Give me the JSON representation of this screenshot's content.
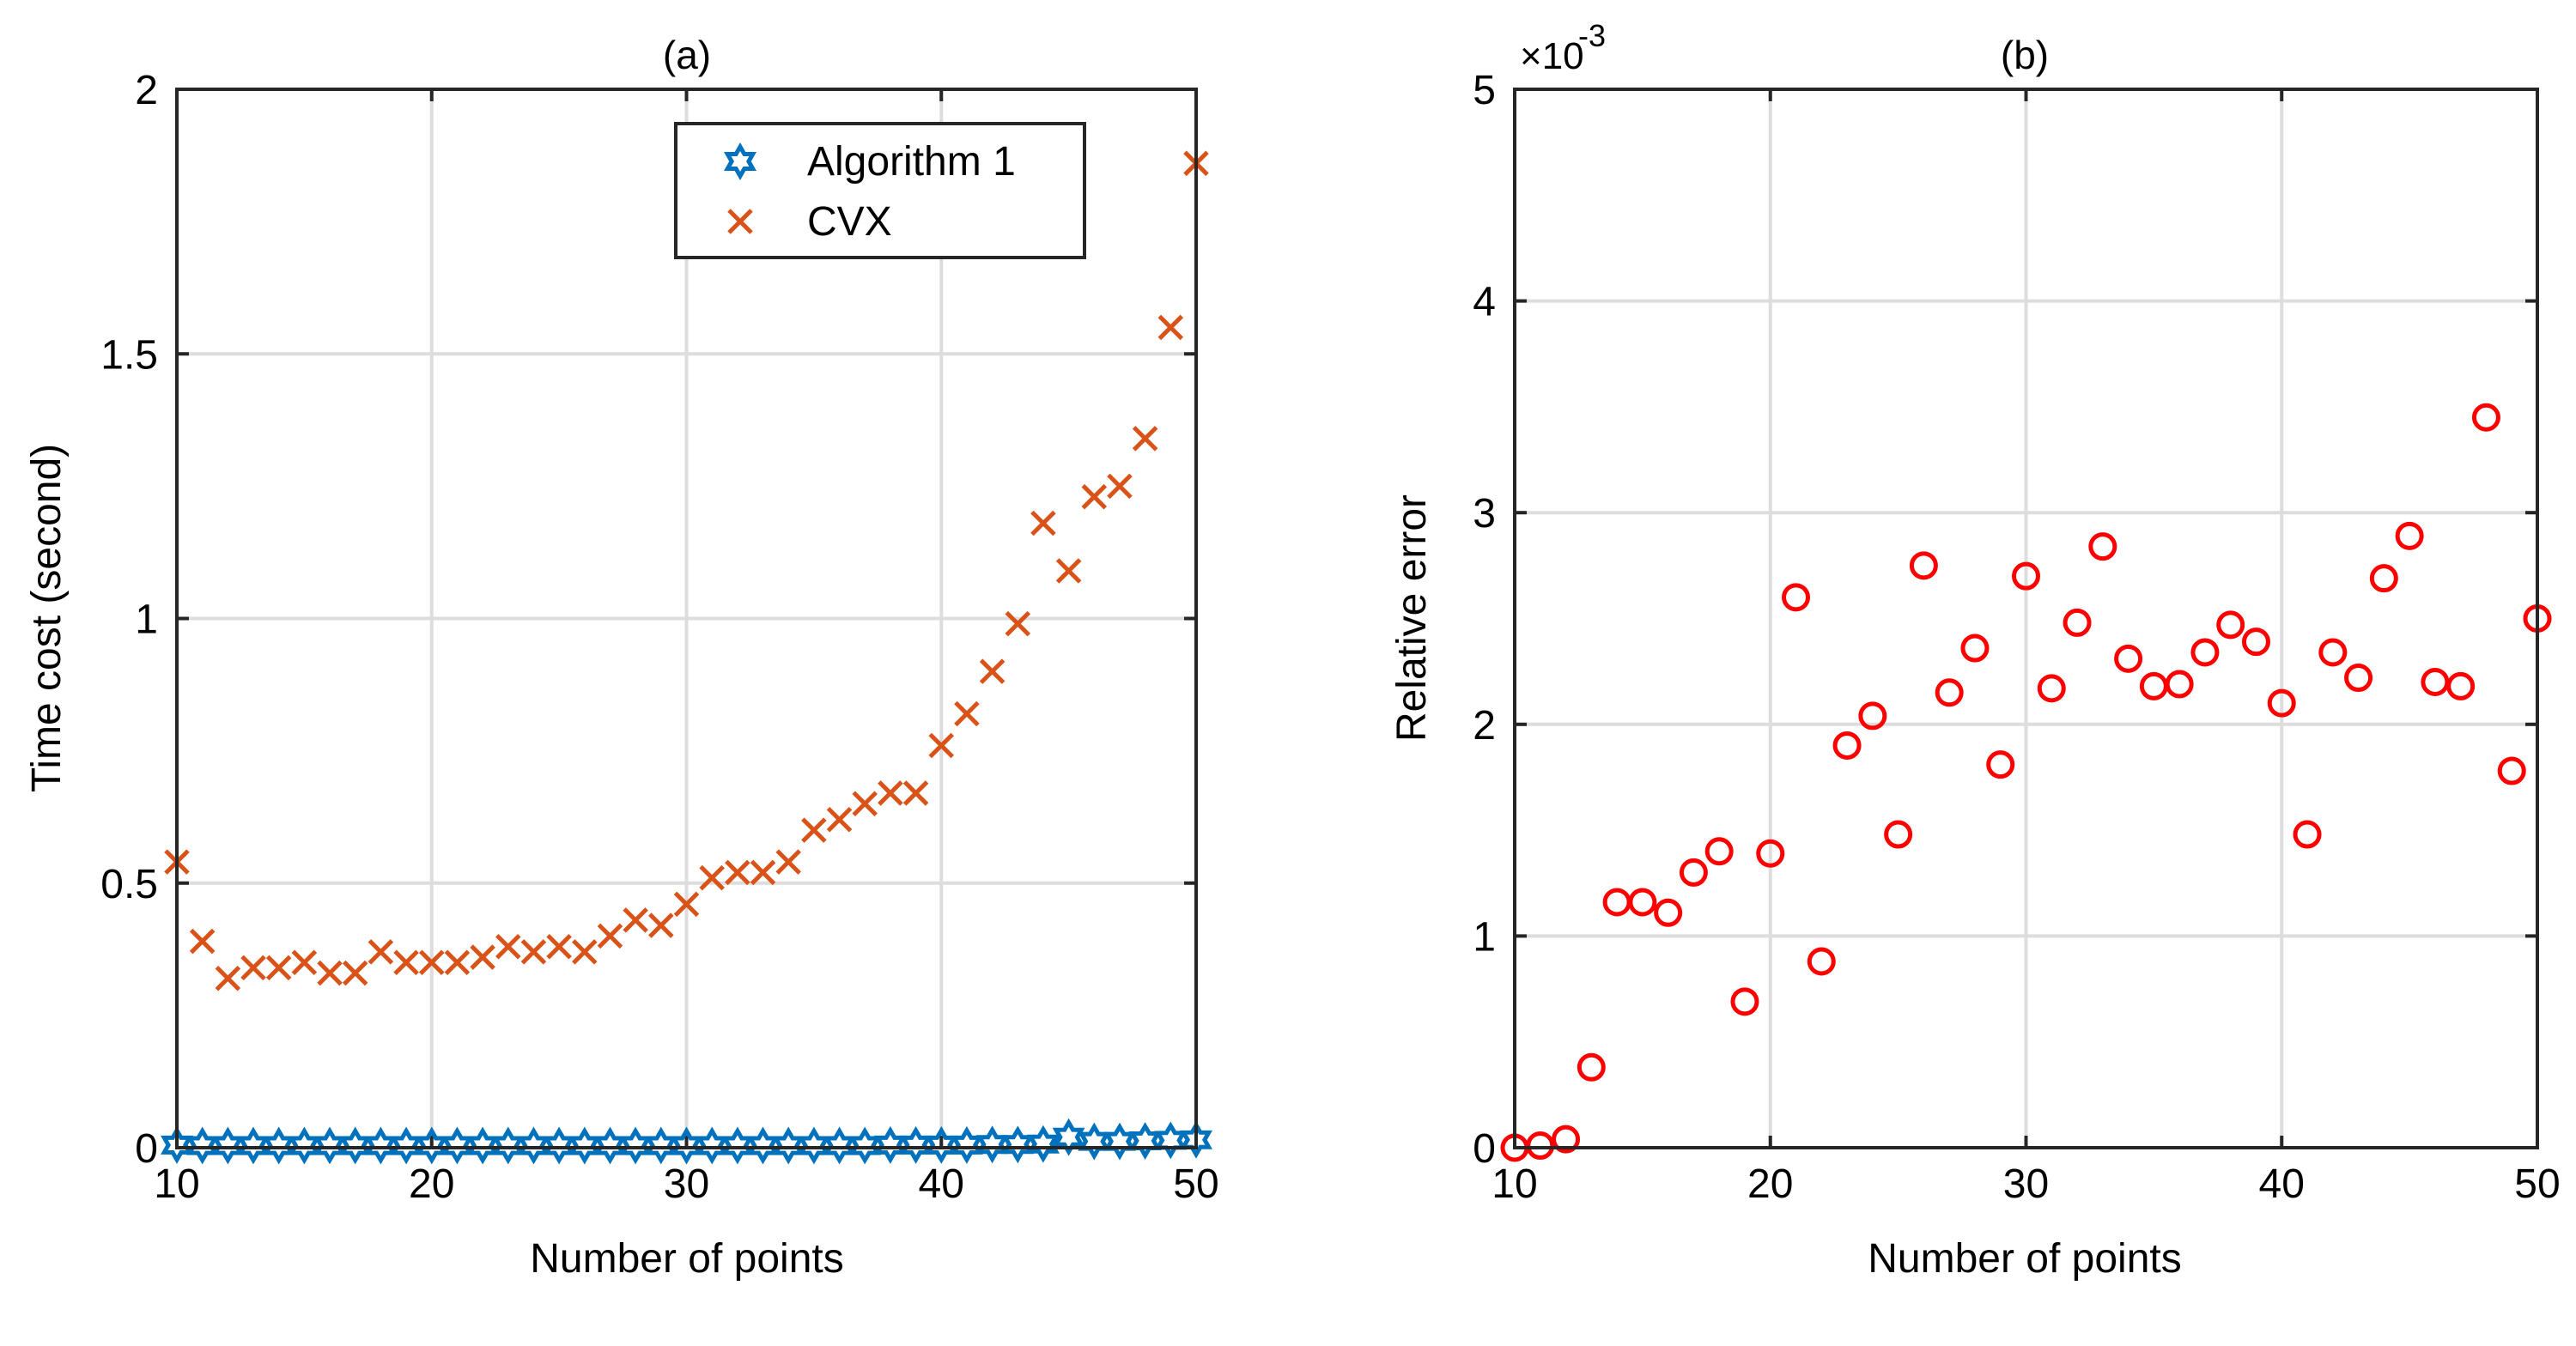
{
  "colors": {
    "algorithm1": "#0072BD",
    "cvx": "#D95319",
    "relative_error": "#FF0000",
    "grid": "#DDDDDD",
    "axis": "#262626"
  },
  "chart_data": [
    {
      "id": "a",
      "type": "scatter",
      "title": "(a)",
      "xlabel": "Number of points",
      "ylabel": "Time cost (second)",
      "xlim": [
        10,
        50
      ],
      "ylim": [
        0,
        2
      ],
      "xticks": [
        10,
        20,
        30,
        40,
        50
      ],
      "xtick_labels": [
        "10",
        "20",
        "30",
        "40",
        "50"
      ],
      "yticks": [
        0,
        0.5,
        1,
        1.5,
        2
      ],
      "ytick_labels": [
        "0",
        "0.5",
        "1",
        "1.5",
        "2"
      ],
      "grid": true,
      "legend_position": "top-right",
      "series": [
        {
          "name": "Algorithm 1",
          "marker": "hexagram",
          "color": "#0072BD",
          "x": [
            10,
            11,
            12,
            13,
            14,
            15,
            16,
            17,
            18,
            19,
            20,
            21,
            22,
            23,
            24,
            25,
            26,
            27,
            28,
            29,
            30,
            31,
            32,
            33,
            34,
            35,
            36,
            37,
            38,
            39,
            40,
            41,
            42,
            43,
            44,
            45,
            46,
            47,
            48,
            49,
            50
          ],
          "y": [
            0.005,
            0.004,
            0.004,
            0.004,
            0.004,
            0.004,
            0.004,
            0.004,
            0.004,
            0.004,
            0.004,
            0.004,
            0.004,
            0.004,
            0.004,
            0.004,
            0.004,
            0.004,
            0.004,
            0.004,
            0.004,
            0.004,
            0.004,
            0.004,
            0.004,
            0.004,
            0.004,
            0.004,
            0.005,
            0.005,
            0.005,
            0.005,
            0.006,
            0.006,
            0.007,
            0.02,
            0.012,
            0.012,
            0.013,
            0.014,
            0.015
          ]
        },
        {
          "name": "CVX",
          "marker": "x",
          "color": "#D95319",
          "x": [
            10,
            11,
            12,
            13,
            14,
            15,
            16,
            17,
            18,
            19,
            20,
            21,
            22,
            23,
            24,
            25,
            26,
            27,
            28,
            29,
            30,
            31,
            32,
            33,
            34,
            35,
            36,
            37,
            38,
            39,
            40,
            41,
            42,
            43,
            44,
            45,
            46,
            47,
            48,
            49,
            50
          ],
          "y": [
            0.54,
            0.39,
            0.32,
            0.34,
            0.34,
            0.35,
            0.33,
            0.33,
            0.37,
            0.35,
            0.35,
            0.35,
            0.36,
            0.38,
            0.37,
            0.38,
            0.37,
            0.4,
            0.43,
            0.42,
            0.46,
            0.51,
            0.52,
            0.52,
            0.54,
            0.6,
            0.62,
            0.65,
            0.67,
            0.67,
            0.76,
            0.82,
            0.9,
            0.99,
            1.18,
            1.09,
            1.23,
            1.25,
            1.34,
            1.55,
            1.86
          ]
        }
      ]
    },
    {
      "id": "b",
      "type": "scatter",
      "title": "(b)",
      "xlabel": "Number of points",
      "ylabel": "Relative error",
      "exponent_label": "×10",
      "exponent_power": "-3",
      "xlim": [
        10,
        50
      ],
      "ylim": [
        0,
        5
      ],
      "xticks": [
        10,
        20,
        30,
        40,
        50
      ],
      "xtick_labels": [
        "10",
        "20",
        "30",
        "40",
        "50"
      ],
      "yticks": [
        0,
        1,
        2,
        3,
        4,
        5
      ],
      "ytick_labels": [
        "0",
        "1",
        "2",
        "3",
        "4",
        "5"
      ],
      "grid": true,
      "series": [
        {
          "name": "Relative error",
          "marker": "circle",
          "color": "#FF0000",
          "x": [
            10,
            11,
            12,
            13,
            14,
            15,
            16,
            17,
            18,
            19,
            20,
            21,
            22,
            23,
            24,
            25,
            26,
            27,
            28,
            29,
            30,
            31,
            32,
            33,
            34,
            35,
            36,
            37,
            38,
            39,
            40,
            41,
            42,
            43,
            44,
            45,
            46,
            47,
            48,
            49,
            50
          ],
          "y": [
            0.0,
            0.01,
            0.04,
            0.38,
            1.16,
            1.16,
            1.11,
            1.3,
            1.4,
            0.69,
            1.39,
            2.6,
            0.88,
            1.9,
            2.04,
            1.48,
            2.75,
            2.15,
            2.36,
            1.81,
            2.7,
            2.17,
            2.48,
            2.84,
            2.31,
            2.18,
            2.19,
            2.34,
            2.47,
            2.39,
            2.1,
            1.48,
            2.34,
            2.22,
            2.69,
            2.89,
            2.2,
            2.18,
            3.45,
            1.78,
            2.5
          ]
        }
      ]
    }
  ]
}
